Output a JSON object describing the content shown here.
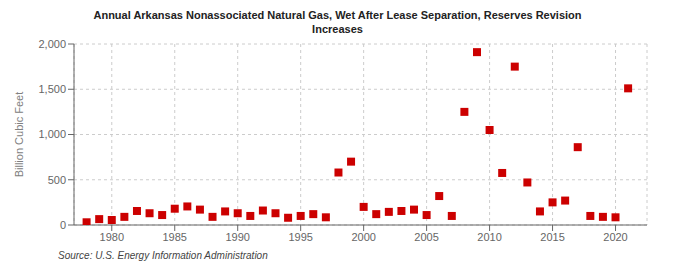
{
  "chart_data": {
    "type": "scatter",
    "title": "Annual Arkansas Nonassociated Natural Gas, Wet After Lease Separation, Reserves Revision\nIncreases",
    "y_label": "Billion Cubic Feet",
    "annotations": [
      "Source: U.S. Energy Information Administration"
    ],
    "x": [
      1978,
      1979,
      1980,
      1981,
      1982,
      1983,
      1984,
      1985,
      1986,
      1987,
      1988,
      1989,
      1990,
      1991,
      1992,
      1993,
      1994,
      1995,
      1996,
      1997,
      1998,
      1999,
      2000,
      2001,
      2002,
      2003,
      2004,
      2005,
      2006,
      2007,
      2008,
      2009,
      2010,
      2011,
      2012,
      2013,
      2014,
      2015,
      2016,
      2017,
      2018,
      2019,
      2020,
      2021
    ],
    "values": [
      30,
      65,
      55,
      90,
      155,
      130,
      110,
      180,
      205,
      170,
      90,
      150,
      130,
      100,
      160,
      130,
      80,
      100,
      120,
      85,
      580,
      700,
      200,
      120,
      145,
      155,
      170,
      110,
      320,
      100,
      1250,
      1910,
      1050,
      575,
      1750,
      470,
      150,
      250,
      270,
      860,
      100,
      90,
      85,
      1510
    ],
    "color": "#cc0000",
    "marker": "square",
    "xlim": [
      1977,
      2022.5
    ],
    "ylim": [
      0,
      2000
    ],
    "xticks": [
      1980,
      1985,
      1990,
      1995,
      2000,
      2005,
      2010,
      2015,
      2020
    ],
    "yticks": [
      0,
      500,
      {
        "value": 1000,
        "label": "1,000"
      },
      {
        "value": 1500,
        "label": "1,500"
      },
      {
        "value": 2000,
        "label": "2,000"
      }
    ],
    "grid": true
  }
}
